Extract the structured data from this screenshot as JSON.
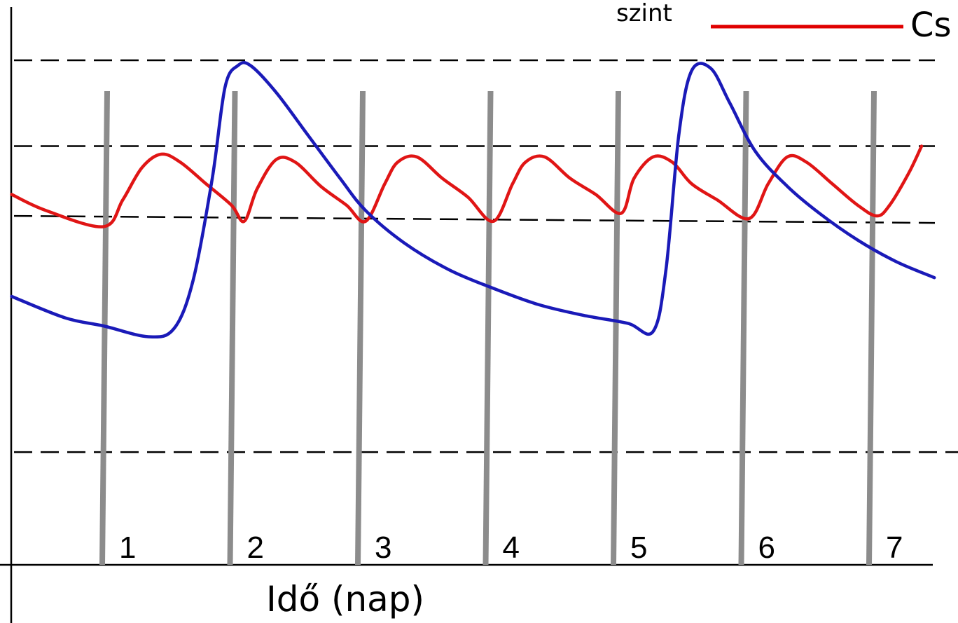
{
  "chart_data": {
    "type": "line",
    "title": "",
    "xlabel": "Idő (nap)",
    "ylabel": "",
    "xlim": [
      0,
      7.5
    ],
    "ylim": [
      0,
      10
    ],
    "grid": false,
    "legend": {
      "placement": "top-right",
      "entries": [
        {
          "fragment_left": "szint",
          "fragment_right": "Cs",
          "color": "#e00000"
        }
      ]
    },
    "day_markers": [
      {
        "x": 1,
        "label": "1"
      },
      {
        "x": 2,
        "label": "2"
      },
      {
        "x": 3,
        "label": "3"
      },
      {
        "x": 4,
        "label": "4"
      },
      {
        "x": 5,
        "label": "5"
      },
      {
        "x": 6,
        "label": "6"
      },
      {
        "x": 7,
        "label": "7"
      }
    ],
    "reference_levels": [
      9.4,
      7.8,
      6.5,
      2.1
    ],
    "series": [
      {
        "color": "#e01515",
        "points": [
          [
            0.28,
            6.9
          ],
          [
            0.55,
            6.6
          ],
          [
            1.0,
            6.3
          ],
          [
            1.15,
            6.8
          ],
          [
            1.3,
            7.4
          ],
          [
            1.45,
            7.65
          ],
          [
            1.6,
            7.5
          ],
          [
            1.8,
            7.1
          ],
          [
            2.0,
            6.7
          ],
          [
            2.1,
            6.4
          ],
          [
            2.2,
            7.0
          ],
          [
            2.35,
            7.55
          ],
          [
            2.5,
            7.5
          ],
          [
            2.7,
            7.05
          ],
          [
            2.9,
            6.7
          ],
          [
            3.05,
            6.4
          ],
          [
            3.2,
            7.1
          ],
          [
            3.3,
            7.5
          ],
          [
            3.45,
            7.6
          ],
          [
            3.65,
            7.2
          ],
          [
            3.85,
            6.85
          ],
          [
            4.05,
            6.4
          ],
          [
            4.2,
            7.1
          ],
          [
            4.3,
            7.5
          ],
          [
            4.45,
            7.6
          ],
          [
            4.65,
            7.2
          ],
          [
            4.85,
            6.9
          ],
          [
            5.05,
            6.55
          ],
          [
            5.15,
            7.2
          ],
          [
            5.3,
            7.6
          ],
          [
            5.45,
            7.5
          ],
          [
            5.6,
            7.1
          ],
          [
            5.8,
            6.8
          ],
          [
            6.05,
            6.45
          ],
          [
            6.2,
            7.1
          ],
          [
            6.35,
            7.6
          ],
          [
            6.5,
            7.5
          ],
          [
            6.7,
            7.1
          ],
          [
            6.9,
            6.7
          ],
          [
            7.05,
            6.5
          ],
          [
            7.15,
            6.7
          ],
          [
            7.3,
            7.3
          ],
          [
            7.4,
            7.8
          ]
        ]
      },
      {
        "color": "#1a1ab8",
        "points": [
          [
            0.28,
            5.0
          ],
          [
            0.7,
            4.6
          ],
          [
            1.0,
            4.45
          ],
          [
            1.35,
            4.25
          ],
          [
            1.55,
            4.4
          ],
          [
            1.7,
            5.3
          ],
          [
            1.85,
            7.2
          ],
          [
            1.95,
            8.9
          ],
          [
            2.05,
            9.3
          ],
          [
            2.15,
            9.3
          ],
          [
            2.35,
            8.8
          ],
          [
            2.6,
            8.0
          ],
          [
            2.85,
            7.2
          ],
          [
            3.05,
            6.6
          ],
          [
            3.35,
            6.0
          ],
          [
            3.7,
            5.5
          ],
          [
            4.05,
            5.15
          ],
          [
            4.4,
            4.85
          ],
          [
            4.75,
            4.65
          ],
          [
            5.1,
            4.5
          ],
          [
            5.3,
            4.35
          ],
          [
            5.4,
            5.5
          ],
          [
            5.5,
            8.0
          ],
          [
            5.6,
            9.2
          ],
          [
            5.75,
            9.25
          ],
          [
            5.9,
            8.6
          ],
          [
            6.1,
            7.7
          ],
          [
            6.35,
            7.05
          ],
          [
            6.6,
            6.55
          ],
          [
            6.9,
            6.05
          ],
          [
            7.2,
            5.65
          ],
          [
            7.5,
            5.35
          ]
        ]
      }
    ]
  }
}
